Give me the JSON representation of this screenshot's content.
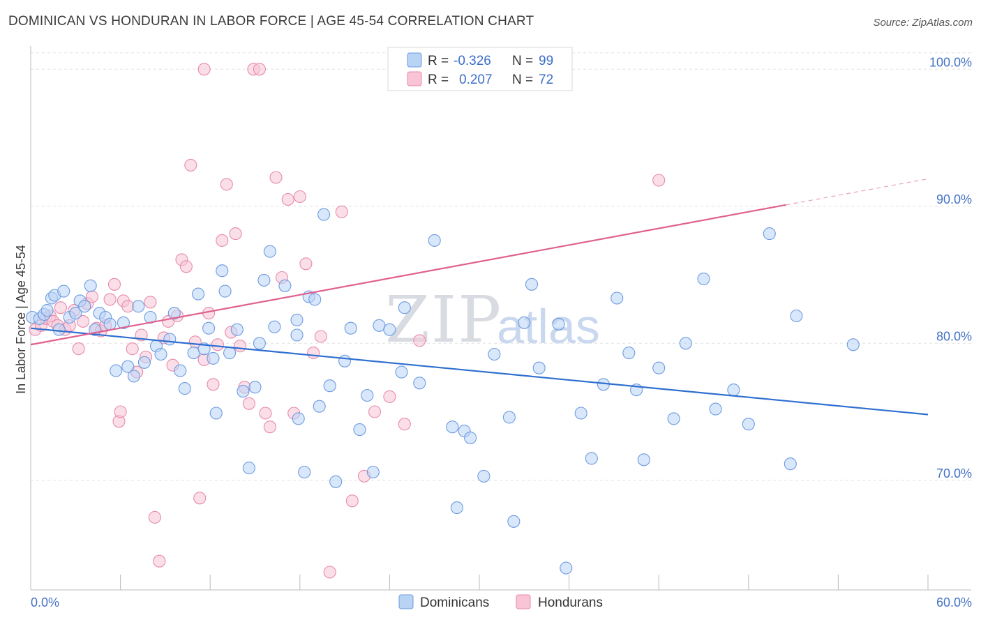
{
  "title": "DOMINICAN VS HONDURAN IN LABOR FORCE | AGE 45-54 CORRELATION CHART",
  "source": "Source: ZipAtlas.com",
  "watermark": {
    "zip": "ZIP",
    "atlas": "atlas"
  },
  "legend": {
    "r_label": "R =",
    "n_label": "N =",
    "rows": [
      {
        "r": "-0.326",
        "n": "99"
      },
      {
        "r": "0.207",
        "n": "72"
      }
    ]
  },
  "colors": {
    "blue": "#4a7fd4",
    "blue_fill": "#b9d3f5",
    "pink": "#e06090",
    "pink_fill": "#f8c4d6",
    "grid": "#e0e0e0",
    "axis_text": "#4472c4"
  },
  "chart_data": {
    "type": "scatter",
    "title": "DOMINICAN VS HONDURAN IN LABOR FORCE | AGE 45-54 CORRELATION CHART",
    "xlabel": "",
    "ylabel": "In Labor Force | Age 45-54",
    "xlim": [
      0,
      60
    ],
    "ylim": [
      62,
      102
    ],
    "x_tick_labels": [
      "0.0%",
      "60.0%"
    ],
    "y_ticks": [
      70,
      80,
      90,
      100
    ],
    "y_tick_labels": [
      "70.0%",
      "80.0%",
      "90.0%",
      "100.0%"
    ],
    "grid": true,
    "legend_position": "top-center",
    "series": [
      {
        "name": "Dominicans",
        "color": "#4a7fd4",
        "trend": {
          "x": [
            0,
            60
          ],
          "y": [
            81.1,
            74.8
          ]
        },
        "points": [
          [
            0.1,
            81.9
          ],
          [
            0.6,
            81.8
          ],
          [
            0.9,
            82.1
          ],
          [
            1.1,
            82.4
          ],
          [
            1.4,
            83.3
          ],
          [
            1.6,
            83.5
          ],
          [
            1.9,
            81.0
          ],
          [
            2.2,
            83.8
          ],
          [
            2.6,
            81.9
          ],
          [
            3.0,
            82.2
          ],
          [
            3.3,
            83.1
          ],
          [
            3.6,
            82.7
          ],
          [
            4.0,
            84.2
          ],
          [
            4.3,
            81.0
          ],
          [
            4.6,
            82.2
          ],
          [
            5.0,
            81.9
          ],
          [
            5.3,
            81.4
          ],
          [
            5.7,
            78.0
          ],
          [
            6.2,
            81.5
          ],
          [
            6.5,
            78.3
          ],
          [
            6.9,
            77.6
          ],
          [
            7.2,
            82.7
          ],
          [
            7.6,
            78.6
          ],
          [
            8.0,
            81.9
          ],
          [
            8.4,
            79.8
          ],
          [
            8.7,
            79.2
          ],
          [
            9.3,
            80.3
          ],
          [
            9.6,
            82.2
          ],
          [
            10.0,
            78.0
          ],
          [
            10.3,
            76.7
          ],
          [
            10.9,
            79.3
          ],
          [
            11.2,
            83.6
          ],
          [
            11.6,
            79.6
          ],
          [
            11.9,
            81.1
          ],
          [
            12.2,
            78.9
          ],
          [
            12.4,
            74.9
          ],
          [
            12.8,
            85.3
          ],
          [
            13.0,
            83.8
          ],
          [
            13.3,
            79.3
          ],
          [
            13.8,
            81.0
          ],
          [
            14.2,
            76.5
          ],
          [
            14.6,
            70.9
          ],
          [
            15.0,
            76.8
          ],
          [
            15.3,
            80.0
          ],
          [
            15.6,
            84.6
          ],
          [
            16.0,
            86.7
          ],
          [
            16.3,
            81.2
          ],
          [
            17.0,
            84.2
          ],
          [
            17.8,
            80.6
          ],
          [
            17.8,
            81.7
          ],
          [
            17.9,
            74.5
          ],
          [
            18.3,
            70.6
          ],
          [
            18.6,
            83.4
          ],
          [
            19.0,
            83.2
          ],
          [
            19.3,
            75.4
          ],
          [
            19.6,
            89.4
          ],
          [
            20.0,
            76.9
          ],
          [
            20.4,
            69.9
          ],
          [
            21.0,
            78.7
          ],
          [
            21.4,
            81.1
          ],
          [
            22.0,
            73.7
          ],
          [
            22.5,
            76.2
          ],
          [
            22.9,
            70.6
          ],
          [
            23.3,
            81.3
          ],
          [
            24.0,
            81.0
          ],
          [
            24.8,
            77.9
          ],
          [
            25.0,
            82.6
          ],
          [
            26.0,
            77.1
          ],
          [
            27.0,
            87.5
          ],
          [
            28.2,
            73.9
          ],
          [
            28.5,
            68.0
          ],
          [
            29.0,
            73.6
          ],
          [
            29.4,
            73.1
          ],
          [
            30.3,
            70.3
          ],
          [
            31.0,
            79.2
          ],
          [
            32.0,
            74.6
          ],
          [
            32.3,
            67.0
          ],
          [
            33.0,
            81.5
          ],
          [
            33.5,
            84.3
          ],
          [
            34.0,
            78.2
          ],
          [
            35.3,
            81.4
          ],
          [
            35.8,
            63.6
          ],
          [
            36.8,
            74.9
          ],
          [
            37.5,
            71.6
          ],
          [
            38.3,
            77.0
          ],
          [
            39.2,
            83.3
          ],
          [
            40.0,
            79.3
          ],
          [
            40.5,
            76.6
          ],
          [
            41.0,
            71.5
          ],
          [
            42.0,
            78.2
          ],
          [
            43.0,
            74.5
          ],
          [
            43.8,
            80.0
          ],
          [
            45.0,
            84.7
          ],
          [
            45.8,
            75.2
          ],
          [
            47.0,
            76.6
          ],
          [
            48.0,
            74.1
          ],
          [
            49.4,
            88.0
          ],
          [
            50.8,
            71.2
          ],
          [
            51.2,
            82.0
          ],
          [
            55.0,
            79.9
          ]
        ]
      },
      {
        "name": "Hondurans",
        "color": "#e06090",
        "trend": {
          "x": [
            0,
            50.5
          ],
          "y": [
            79.9,
            90.1
          ]
        },
        "trend_dashed": {
          "x": [
            50.5,
            60
          ],
          "y": [
            90.1,
            92.0
          ]
        },
        "points": [
          [
            0.3,
            81.0
          ],
          [
            0.7,
            81.3
          ],
          [
            1.0,
            81.8
          ],
          [
            1.3,
            82.0
          ],
          [
            1.5,
            81.6
          ],
          [
            1.8,
            81.3
          ],
          [
            2.0,
            82.6
          ],
          [
            2.3,
            81.0
          ],
          [
            2.6,
            81.3
          ],
          [
            2.9,
            82.4
          ],
          [
            3.2,
            79.6
          ],
          [
            3.5,
            81.6
          ],
          [
            3.8,
            82.9
          ],
          [
            4.1,
            83.4
          ],
          [
            4.4,
            81.1
          ],
          [
            4.7,
            80.9
          ],
          [
            5.0,
            81.3
          ],
          [
            5.3,
            83.2
          ],
          [
            5.6,
            84.3
          ],
          [
            5.9,
            74.3
          ],
          [
            6.2,
            83.1
          ],
          [
            6.5,
            82.7
          ],
          [
            6.8,
            79.6
          ],
          [
            7.1,
            77.9
          ],
          [
            7.4,
            80.6
          ],
          [
            7.7,
            79.0
          ],
          [
            8.0,
            83.0
          ],
          [
            8.3,
            67.3
          ],
          [
            8.6,
            64.1
          ],
          [
            8.9,
            80.4
          ],
          [
            9.2,
            81.6
          ],
          [
            9.5,
            78.4
          ],
          [
            9.8,
            82.0
          ],
          [
            10.1,
            86.1
          ],
          [
            10.4,
            85.6
          ],
          [
            10.7,
            93.0
          ],
          [
            11.0,
            80.1
          ],
          [
            11.3,
            68.7
          ],
          [
            11.6,
            78.8
          ],
          [
            11.9,
            82.2
          ],
          [
            12.2,
            77.0
          ],
          [
            12.5,
            79.9
          ],
          [
            12.8,
            87.5
          ],
          [
            13.1,
            91.6
          ],
          [
            13.4,
            80.8
          ],
          [
            13.7,
            88.0
          ],
          [
            14.0,
            79.8
          ],
          [
            14.3,
            76.8
          ],
          [
            14.6,
            75.6
          ],
          [
            14.9,
            100.0
          ],
          [
            15.3,
            100.0
          ],
          [
            15.7,
            74.9
          ],
          [
            16.0,
            73.9
          ],
          [
            16.4,
            92.1
          ],
          [
            16.8,
            84.8
          ],
          [
            17.2,
            90.5
          ],
          [
            17.6,
            74.9
          ],
          [
            18.0,
            90.7
          ],
          [
            18.4,
            85.8
          ],
          [
            18.9,
            79.3
          ],
          [
            19.4,
            80.5
          ],
          [
            20.0,
            63.3
          ],
          [
            20.8,
            89.6
          ],
          [
            21.5,
            68.5
          ],
          [
            22.3,
            70.3
          ],
          [
            23.0,
            75.0
          ],
          [
            24.0,
            76.1
          ],
          [
            25.0,
            74.1
          ],
          [
            26.0,
            80.2
          ],
          [
            11.6,
            100.0
          ],
          [
            6.0,
            75.0
          ],
          [
            42.0,
            91.9
          ]
        ]
      }
    ]
  }
}
